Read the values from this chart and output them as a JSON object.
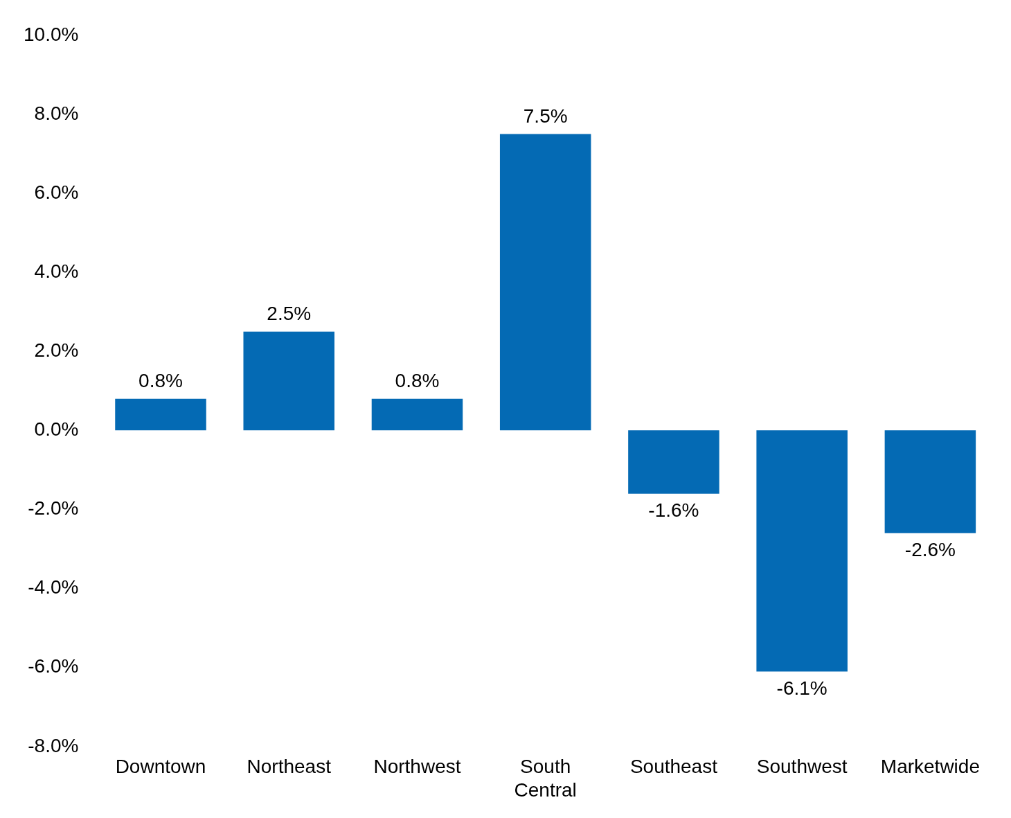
{
  "chart_data": {
    "type": "bar",
    "categories": [
      "Downtown",
      "Northeast",
      "Northwest",
      "South Central",
      "Southeast",
      "Southwest",
      "Marketwide"
    ],
    "values": [
      0.8,
      2.5,
      0.8,
      7.5,
      -1.6,
      -6.1,
      -2.6
    ],
    "value_labels": [
      "0.8%",
      "2.5%",
      "0.8%",
      "7.5%",
      "-1.6%",
      "-6.1%",
      "-2.6%"
    ],
    "color": "#046ab4",
    "ylim": [
      -8,
      10
    ],
    "yticks": [
      {
        "value": -8,
        "label": "-8.0%"
      },
      {
        "value": -6,
        "label": "-6.0%"
      },
      {
        "value": -4,
        "label": "-4.0%"
      },
      {
        "value": -2,
        "label": "-2.0%"
      },
      {
        "value": 0,
        "label": "0.0%"
      },
      {
        "value": 2,
        "label": "2.0%"
      },
      {
        "value": 4,
        "label": "4.0%"
      },
      {
        "value": 6,
        "label": "6.0%"
      },
      {
        "value": 8,
        "label": "8.0%"
      },
      {
        "value": 10,
        "label": "10.0%"
      }
    ],
    "grid": false,
    "legend": false
  }
}
